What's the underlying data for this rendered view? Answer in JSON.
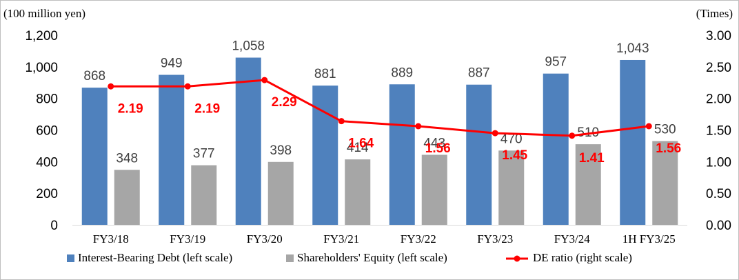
{
  "chart_data": {
    "type": "bar",
    "left_axis_unit": "(100 million yen)",
    "right_axis_unit": "(Times)",
    "categories": [
      "FY3/18",
      "FY3/19",
      "FY3/20",
      "FY3/21",
      "FY3/22",
      "FY3/23",
      "FY3/24",
      "1H FY3/25"
    ],
    "left_ylim": [
      0,
      1200
    ],
    "left_ticks": [
      "1,200",
      "1,000",
      "800",
      "600",
      "400",
      "200",
      "0"
    ],
    "right_ylim": [
      0,
      3.0
    ],
    "right_ticks": [
      "3.00",
      "2.50",
      "2.00",
      "1.50",
      "1.00",
      "0.50",
      "0.00"
    ],
    "series": [
      {
        "name": "Interest-Bearing Debt (left scale)",
        "type": "bar",
        "axis": "left",
        "color": "#4f81bd",
        "values": [
          868,
          949,
          1058,
          881,
          889,
          887,
          957,
          1043
        ],
        "labels": [
          "868",
          "949",
          "1,058",
          "881",
          "889",
          "887",
          "957",
          "1,043"
        ]
      },
      {
        "name": "Shareholders' Equity (left scale)",
        "type": "bar",
        "axis": "left",
        "color": "#a6a6a6",
        "values": [
          348,
          377,
          398,
          414,
          443,
          470,
          510,
          530
        ],
        "labels": [
          "348",
          "377",
          "398",
          "414",
          "443",
          "470",
          "510",
          "530"
        ]
      },
      {
        "name": "DE ratio (right scale)",
        "type": "line",
        "axis": "right",
        "color": "#ff0000",
        "values": [
          2.19,
          2.19,
          2.29,
          1.64,
          1.56,
          1.45,
          1.41,
          1.56
        ],
        "labels": [
          "2.19",
          "2.19",
          "2.29",
          "1.64",
          "1.56",
          "1.45",
          "1.41",
          "1.56"
        ]
      }
    ],
    "grid": false,
    "legend": "bottom"
  }
}
